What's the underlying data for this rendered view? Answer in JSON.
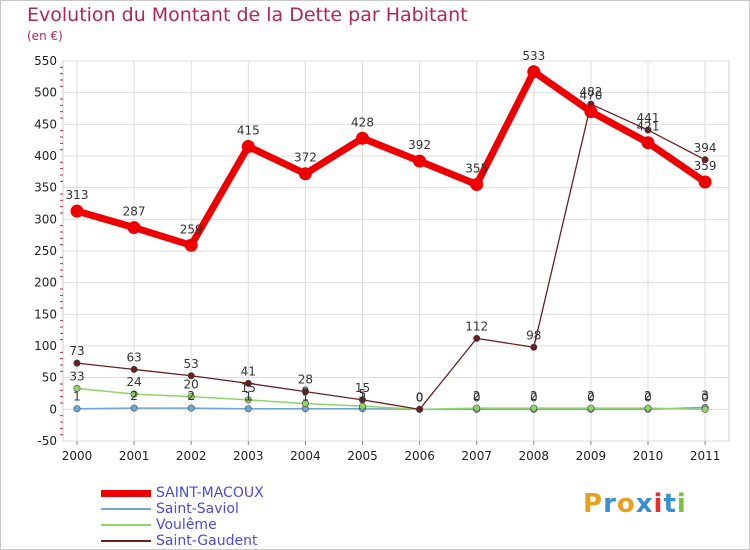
{
  "title": "Evolution du Montant de la Dette par Habitant",
  "subtitle": "(en €)",
  "logo": {
    "letters": [
      "P",
      "r",
      "o",
      "x",
      "i",
      "t",
      "i"
    ],
    "colors": [
      "#e8a020",
      "#3b8fd1",
      "#e8a020",
      "#3b8fd1",
      "#e03030",
      "#3b8fd1",
      "#7cc241"
    ]
  },
  "chart_data": {
    "type": "line",
    "categories": [
      "2000",
      "2001",
      "2002",
      "2003",
      "2004",
      "2005",
      "2006",
      "2007",
      "2008",
      "2009",
      "2010",
      "2011"
    ],
    "ylim": [
      -50,
      550
    ],
    "yticks": [
      -50,
      0,
      50,
      100,
      150,
      200,
      250,
      300,
      350,
      400,
      450,
      500,
      550
    ],
    "grid": true,
    "series": [
      {
        "name": "SAINT-MACOUX",
        "color": "#ee0000",
        "values": [
          313,
          287,
          259,
          415,
          372,
          428,
          392,
          355,
          533,
          470,
          421,
          359
        ],
        "labels": [
          "313",
          "287",
          "259",
          "415",
          "372",
          "428",
          "392",
          "355",
          "533",
          "470",
          "421",
          "359"
        ]
      },
      {
        "name": "Saint-Saviol",
        "color": "#6fa7d6",
        "values": [
          1,
          2,
          2,
          1,
          1,
          1,
          0,
          0,
          0,
          0,
          0,
          3
        ],
        "labels": [
          "1",
          "2",
          "2",
          "1",
          "1",
          "1",
          "0",
          "0",
          "0",
          "0",
          "0",
          "3"
        ]
      },
      {
        "name": "Voulême",
        "color": "#8fd466",
        "values": [
          33,
          24,
          20,
          15,
          9,
          5,
          0,
          2,
          2,
          2,
          2,
          0
        ],
        "labels": [
          "33",
          "24",
          "20",
          "15",
          "9",
          "5",
          "0",
          "2",
          "2",
          "2",
          "2",
          "0"
        ]
      },
      {
        "name": "Saint-Gaudent",
        "color": "#6b1f1f",
        "values": [
          73,
          63,
          53,
          41,
          28,
          15,
          0,
          112,
          98,
          482,
          441,
          394
        ],
        "labels": [
          "73",
          "63",
          "53",
          "41",
          "28",
          "15",
          "0",
          "112",
          "98",
          "482",
          "441",
          "394"
        ]
      }
    ]
  }
}
